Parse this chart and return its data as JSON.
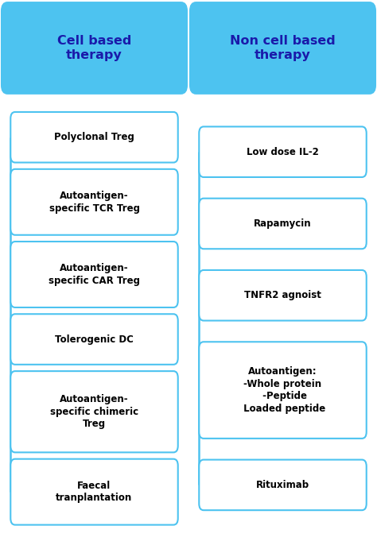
{
  "bg_color": "#ffffff",
  "header_bg": "#4dc3f0",
  "header_border": "#4dc3f0",
  "box_bg": "#ffffff",
  "box_border": "#4dc3f0",
  "header_text_color": "#1a1aaa",
  "box_text_color": "#000000",
  "line_color": "#4dc3f0",
  "left_header": "Cell based\ntherapy",
  "right_header": "Non cell based\ntherapy",
  "left_items": [
    "Polyclonal Treg",
    "Autoantigen-\nspecific TCR Treg",
    "Autoantigen-\nspecific CAR Treg",
    "Tolerogenic DC",
    "Autoantigen-\nspecific chimeric\nTreg",
    "Faecal\ntranplantation"
  ],
  "right_items": [
    "Low dose IL-2",
    "Rapamycin",
    "TNFR2 agnoist",
    "Autoantigen:\n-Whole protein\n -Peptide\n Loaded peptide",
    "Rituximab"
  ],
  "left_item_lines": [
    1,
    2,
    2,
    1,
    3,
    2
  ],
  "right_item_lines": [
    1,
    1,
    1,
    4,
    1
  ]
}
